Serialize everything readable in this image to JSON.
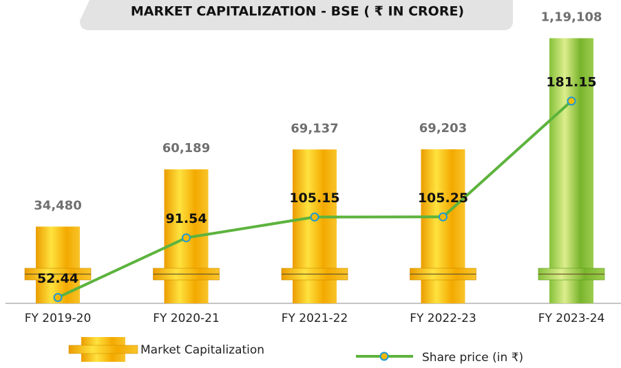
{
  "chart_data": {
    "type": "bar-line",
    "title": "MARKET CAPITALIZATION - BSE ( ₹ IN CRORE)",
    "categories": [
      "FY 2019-20",
      "FY 2020-21",
      "FY 2021-22",
      "FY 2022-23",
      "FY 2023-24"
    ],
    "series": [
      {
        "name": "Market Capitalization",
        "type": "bar",
        "color": "gold",
        "colors": [
          "gold",
          "gold",
          "gold",
          "gold",
          "green"
        ],
        "values": [
          34480,
          60189,
          69137,
          69203,
          119108
        ],
        "value_labels": [
          "34,480",
          "60,189",
          "69,137",
          "69,203",
          "1,19,108"
        ]
      },
      {
        "name": "Share price (in ₹)",
        "type": "line",
        "axis": "y2",
        "color": "#5db33d",
        "marker_color": "#f5b800",
        "marker_edge": "#1e9ad6",
        "values": [
          52.44,
          91.54,
          105.15,
          105.25,
          181.15
        ]
      }
    ],
    "ylim": [
      0,
      127000
    ],
    "y2lim": [
      48.6,
      233.8
    ]
  }
}
